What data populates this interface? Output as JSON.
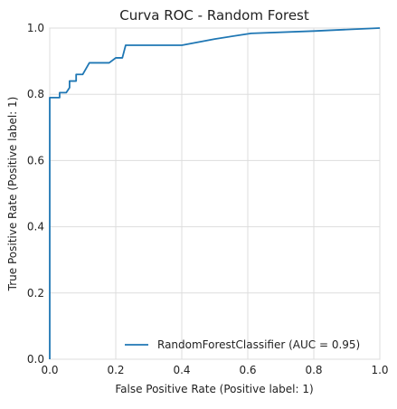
{
  "chart_data": {
    "type": "line",
    "title": "Curva ROC - Random Forest",
    "xlabel": "False Positive Rate (Positive label: 1)",
    "ylabel": "True Positive Rate (Positive label: 1)",
    "xlim": [
      0.0,
      1.0
    ],
    "ylim": [
      0.0,
      1.0
    ],
    "x_ticks": [
      "0.0",
      "0.2",
      "0.4",
      "0.6",
      "0.8",
      "1.0"
    ],
    "y_ticks": [
      "0.0",
      "0.2",
      "0.4",
      "0.6",
      "0.8",
      "1.0"
    ],
    "grid": true,
    "legend_position": "lower-right",
    "series": [
      {
        "name": "RandomForestClassifier (AUC = 0.95)",
        "color": "#1f77b4",
        "x": [
          0.0,
          0.0,
          0.006,
          0.006,
          0.03,
          0.03,
          0.05,
          0.06,
          0.06,
          0.08,
          0.08,
          0.1,
          0.12,
          0.18,
          0.2,
          0.22,
          0.23,
          0.4,
          0.5,
          0.61,
          0.8,
          1.0
        ],
        "y": [
          0.0,
          0.79,
          0.79,
          0.79,
          0.79,
          0.805,
          0.805,
          0.82,
          0.84,
          0.84,
          0.86,
          0.86,
          0.895,
          0.895,
          0.91,
          0.91,
          0.948,
          0.948,
          0.967,
          0.984,
          0.991,
          1.0
        ]
      }
    ]
  }
}
